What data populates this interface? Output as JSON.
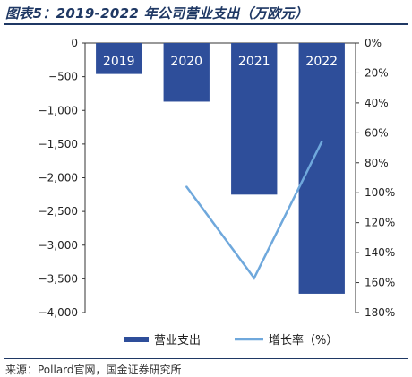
{
  "title": "图表5：2019-2022 年公司营业支出（万欧元）",
  "source": "来源：Pollard官网，国金证券研究所",
  "chart_data": {
    "type": "bar",
    "categories": [
      "2019",
      "2020",
      "2021",
      "2022"
    ],
    "series": [
      {
        "name": "营业支出",
        "type": "bar",
        "axis": "left",
        "values": [
          -460,
          -870,
          -2250,
          -3720
        ]
      },
      {
        "name": "增长率（%）",
        "type": "line",
        "axis": "right",
        "values": [
          null,
          96,
          157,
          66
        ]
      }
    ],
    "y_left": {
      "min": -4000,
      "max": 0,
      "step": 500,
      "ticks": [
        "0",
        "−500",
        "−1,000",
        "−1,500",
        "−2,000",
        "−2,500",
        "−3,000",
        "−3,500",
        "−4,000"
      ]
    },
    "y_right": {
      "min": 0,
      "max": 180,
      "step": 20,
      "inverted": true,
      "ticks": [
        "0%",
        "20%",
        "40%",
        "60%",
        "80%",
        "100%",
        "120%",
        "140%",
        "160%",
        "180%"
      ]
    },
    "legend_position": "bottom",
    "grid": false,
    "colors": {
      "bar": "#2e4e9a",
      "line": "#6fa8dc",
      "bar_label": "#ffffff"
    }
  }
}
